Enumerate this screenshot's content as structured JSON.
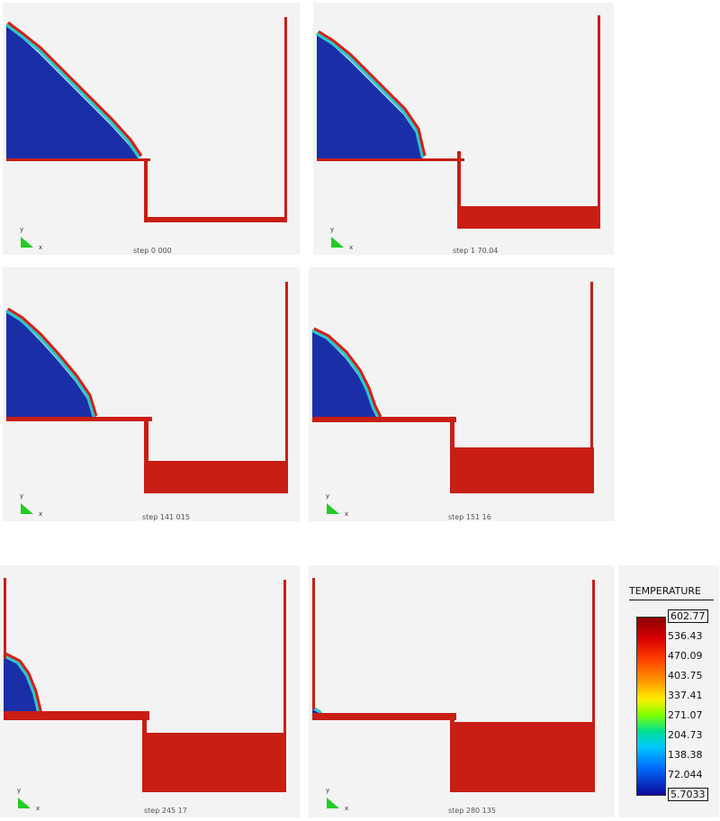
{
  "panels": [
    {
      "step_label": "step 0 000",
      "fill_level": 0.05
    },
    {
      "step_label": "step 1 70.04",
      "fill_level": 0.2
    },
    {
      "step_label": "step 141 015",
      "fill_level": 0.35
    },
    {
      "step_label": "step 151 16",
      "fill_level": 0.5
    },
    {
      "step_label": "step 245 17",
      "fill_level": 0.8
    },
    {
      "step_label": "step 280 135",
      "fill_level": 0.95
    }
  ],
  "axis": {
    "y": "y",
    "x": "x"
  },
  "legend": {
    "title": "TEMPERATURE",
    "ticks": [
      "602.77",
      "536.43",
      "470.09",
      "403.75",
      "337.41",
      "271.07",
      "204.73",
      "138.38",
      "72.044",
      "5.7033"
    ]
  },
  "colors": {
    "hot": "#c81e14",
    "cold": "#1a2ea8",
    "background": "#f3f3f3"
  }
}
